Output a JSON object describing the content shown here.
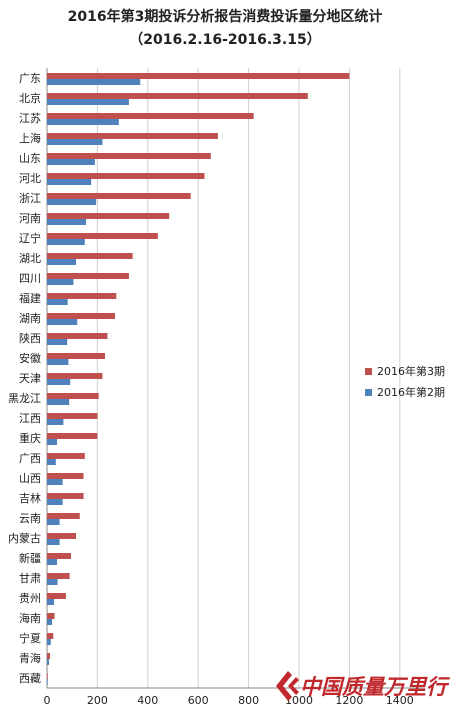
{
  "chart_data": {
    "type": "bar",
    "orientation": "horizontal",
    "title": "2016年第3期投诉分析报告消费投诉量分地区统计",
    "subtitle": "（2016.2.16-2016.3.15）",
    "categories": [
      "广东",
      "北京",
      "江苏",
      "上海",
      "山东",
      "河北",
      "浙江",
      "河南",
      "辽宁",
      "湖北",
      "四川",
      "福建",
      "湖南",
      "陕西",
      "安徽",
      "天津",
      "黑龙江",
      "江西",
      "重庆",
      "广西",
      "山西",
      "吉林",
      "云南",
      "内蒙古",
      "新疆",
      "甘肃",
      "贵州",
      "海南",
      "宁夏",
      "青海",
      "西藏"
    ],
    "series": [
      {
        "name": "2016年第3期",
        "color": "#c0504d",
        "values": [
          1200,
          1035,
          820,
          678,
          650,
          625,
          570,
          485,
          440,
          340,
          325,
          275,
          270,
          240,
          230,
          220,
          205,
          200,
          200,
          150,
          145,
          145,
          130,
          115,
          95,
          90,
          75,
          30,
          25,
          12,
          3
        ]
      },
      {
        "name": "2016年第2期",
        "color": "#4f81bd",
        "values": [
          370,
          325,
          285,
          220,
          190,
          175,
          195,
          155,
          150,
          115,
          105,
          82,
          120,
          80,
          85,
          92,
          88,
          65,
          40,
          35,
          62,
          62,
          50,
          50,
          40,
          42,
          28,
          20,
          15,
          8,
          3
        ]
      }
    ],
    "xlim": [
      0,
      1500
    ],
    "xticks": [
      0,
      200,
      400,
      600,
      800,
      1000,
      1200,
      1400
    ],
    "grid": true,
    "legend": "right"
  },
  "logo": {
    "text": "中国质量万里行"
  }
}
